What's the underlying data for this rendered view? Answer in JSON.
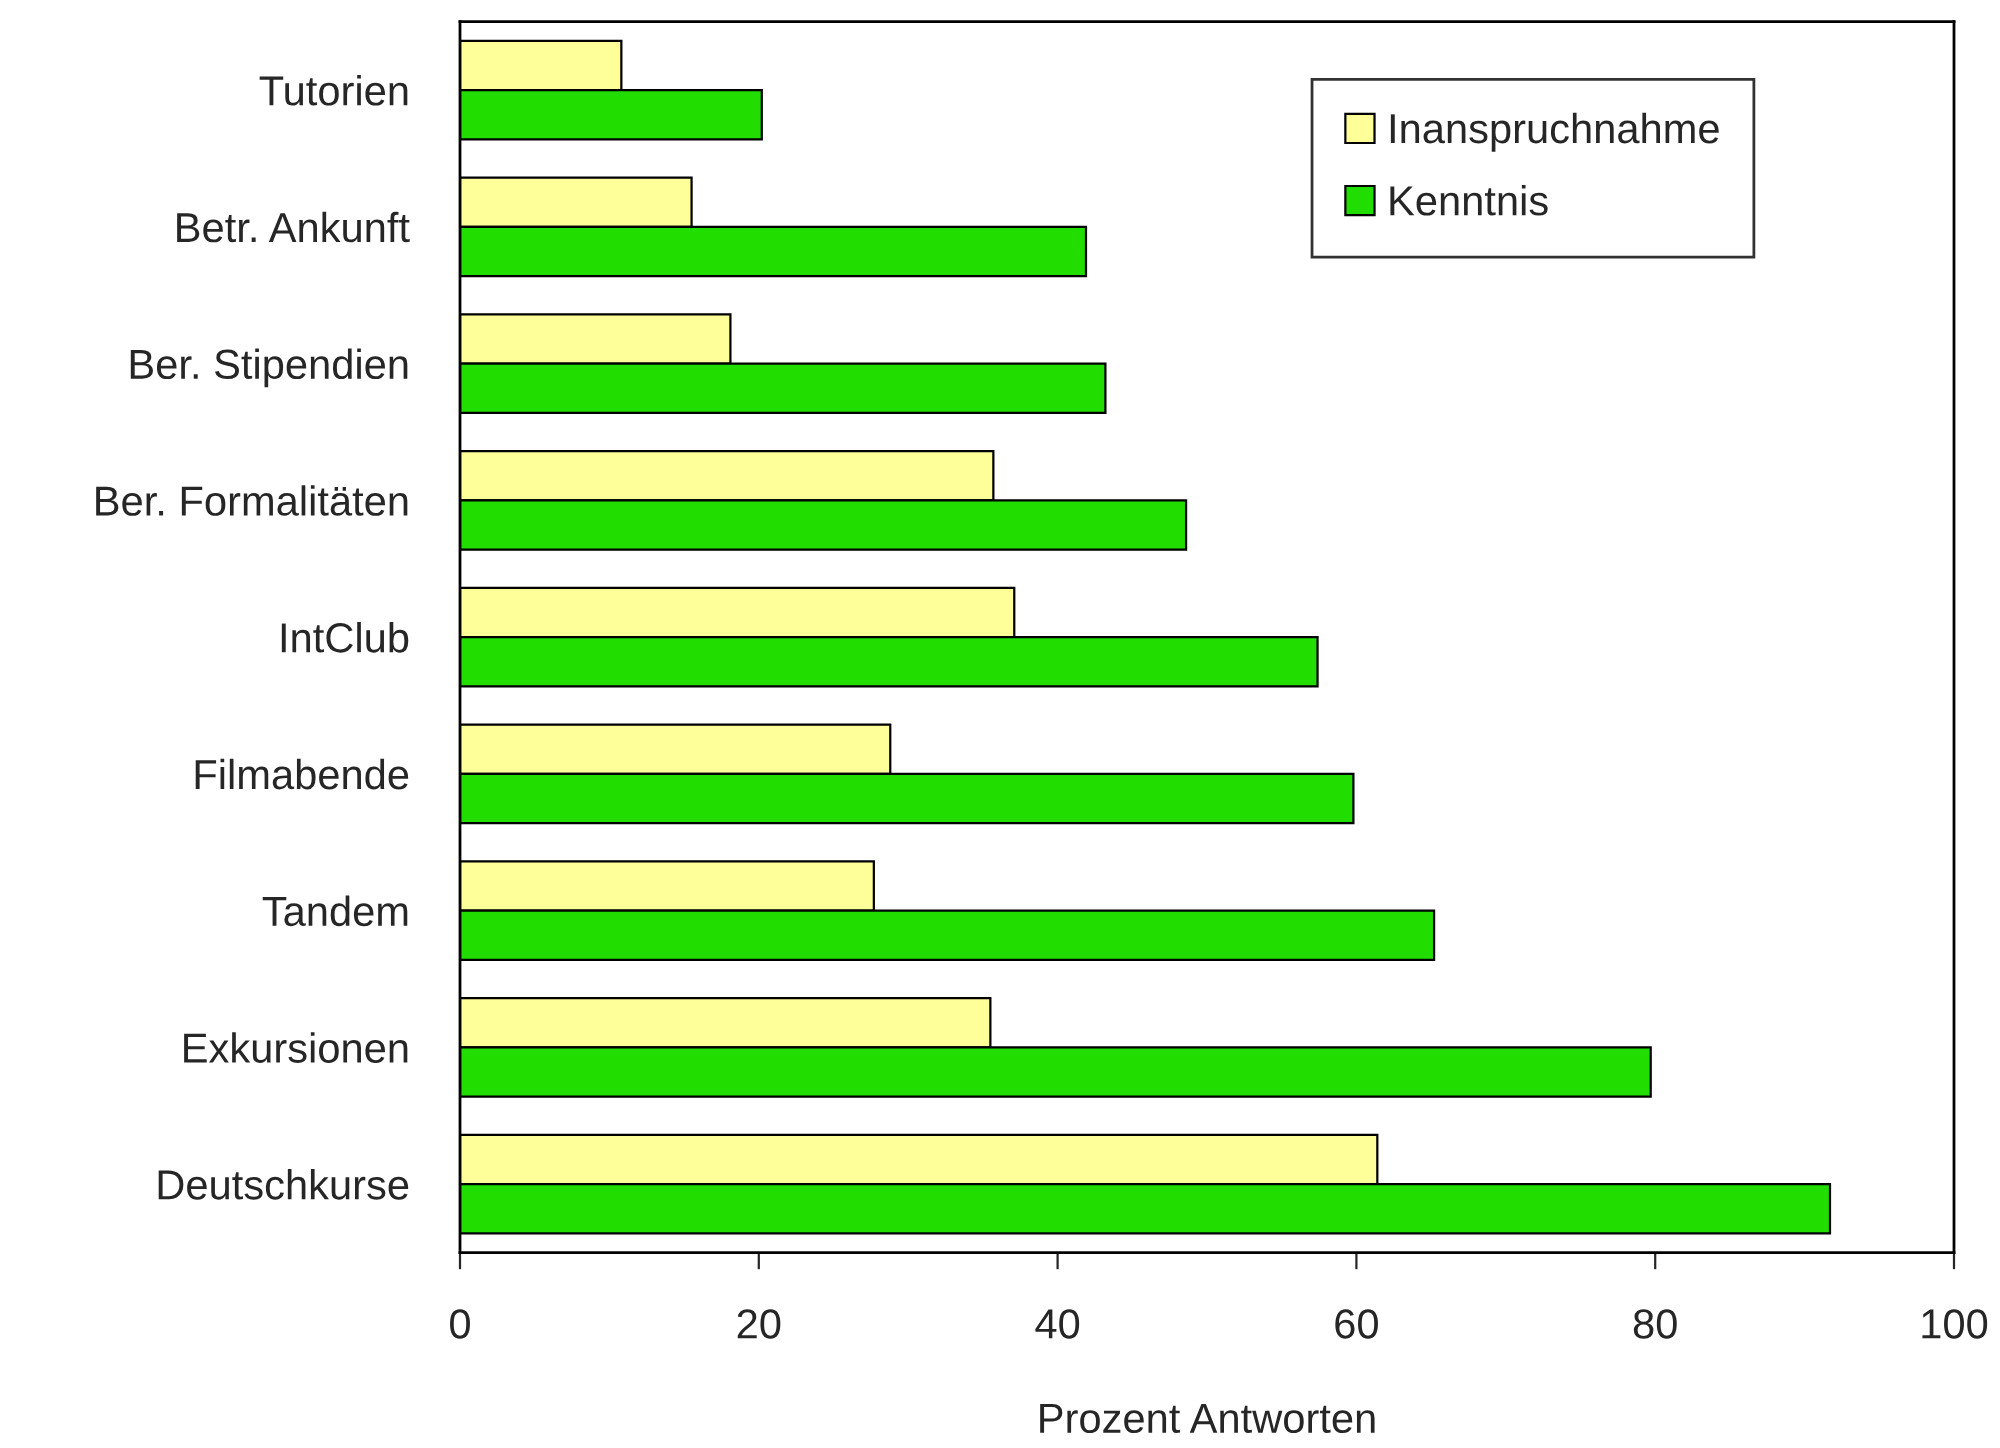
{
  "chart_data": {
    "type": "bar",
    "orientation": "horizontal",
    "xlabel": "Prozent Antworten",
    "categories": [
      "Tutorien",
      "Betr. Ankunft",
      "Ber. Stipendien",
      "Ber. Formalitäten",
      "IntClub",
      "Filmabende",
      "Tandem",
      "Exkursionen",
      "Deutschkurse"
    ],
    "series": [
      {
        "name": "Inanspruchnahme",
        "color": "#ffff99",
        "values": [
          10.8,
          15.5,
          18.1,
          35.7,
          37.1,
          28.8,
          27.7,
          35.5,
          61.4
        ]
      },
      {
        "name": "Kenntnis",
        "color": "#22dd00",
        "values": [
          20.2,
          41.9,
          43.2,
          48.6,
          57.4,
          59.8,
          65.2,
          79.7,
          91.7
        ]
      }
    ],
    "xlim": [
      0,
      100
    ],
    "xticks": [
      0,
      20,
      40,
      60,
      80,
      100
    ],
    "grid": false,
    "legend": "top right"
  }
}
